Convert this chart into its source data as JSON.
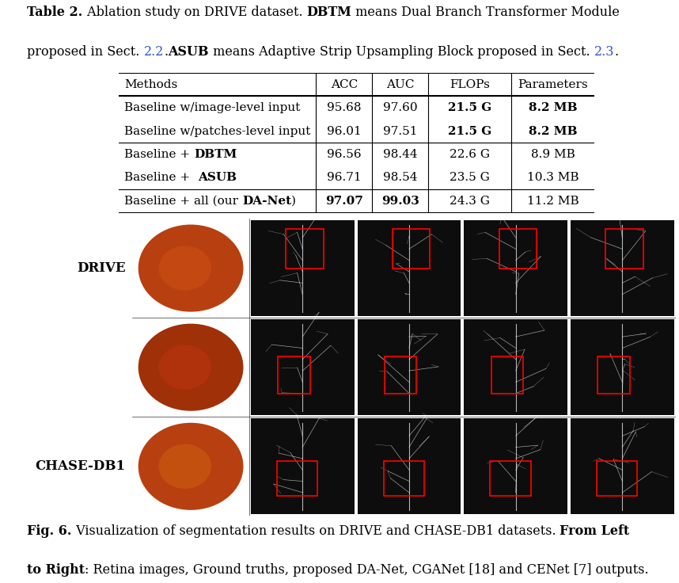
{
  "caption_line1": [
    [
      "Table 2.",
      true,
      "black"
    ],
    [
      " Ablation study on DRIVE dataset. ",
      false,
      "black"
    ],
    [
      "DBTM",
      true,
      "black"
    ],
    [
      " means Dual Branch Transformer Module",
      false,
      "black"
    ]
  ],
  "caption_line2": [
    [
      "proposed in Sect. ",
      false,
      "black"
    ],
    [
      "2.2",
      false,
      "#3355CC"
    ],
    [
      ".",
      false,
      "black"
    ],
    [
      "ASUB",
      true,
      "black"
    ],
    [
      " means Adaptive Strip Upsampling Block proposed in Sect. ",
      false,
      "black"
    ],
    [
      "2.3",
      false,
      "#3355CC"
    ],
    [
      ".",
      false,
      "black"
    ]
  ],
  "table_headers": [
    "Methods",
    "ACC",
    "AUC",
    "FLOPs",
    "Parameters"
  ],
  "table_rows": [
    [
      "Baseline w/image-level input",
      "95.68",
      "97.60",
      "21.5 G",
      "8.2 MB"
    ],
    [
      "Baseline w/patches-level input",
      "96.01",
      "97.51",
      "21.5 G",
      "8.2 MB"
    ],
    [
      "Baseline + DBTM",
      "96.56",
      "98.44",
      "22.6 G",
      "8.9 MB"
    ],
    [
      "Baseline +  ASUB",
      "96.71",
      "98.54",
      "23.5 G",
      "10.3 MB"
    ],
    [
      "Baseline + all (our DA-Net)",
      "97.07",
      "99.03",
      "24.3 G",
      "11.2 MB"
    ]
  ],
  "row_bold_flags": [
    [
      false,
      false,
      true,
      true
    ],
    [
      false,
      false,
      true,
      true
    ],
    [
      false,
      false,
      false,
      false
    ],
    [
      false,
      false,
      false,
      false
    ],
    [
      true,
      true,
      false,
      false
    ]
  ],
  "method_bold_word": [
    "",
    "",
    "DBTM",
    "ASUB",
    "DA-Net"
  ],
  "fig_caption_line1": [
    [
      "Fig. 6.",
      true,
      "black"
    ],
    [
      " Visualization of segmentation results on DRIVE and CHASE-DB1 datasets. ",
      false,
      "black"
    ],
    [
      "From Left",
      true,
      "black"
    ]
  ],
  "fig_caption_line2": [
    [
      "to Right",
      true,
      "black"
    ],
    [
      ": Retina images, Ground truths, proposed DA-Net, CGANet [18] and CENet [7] outputs.",
      false,
      "black"
    ]
  ],
  "drive_label": "DRIVE",
  "chase_label": "CHASE-DB1",
  "table_font": 11.0,
  "caption_font": 11.5,
  "link_color": "#3355CC",
  "white": "#ffffff"
}
